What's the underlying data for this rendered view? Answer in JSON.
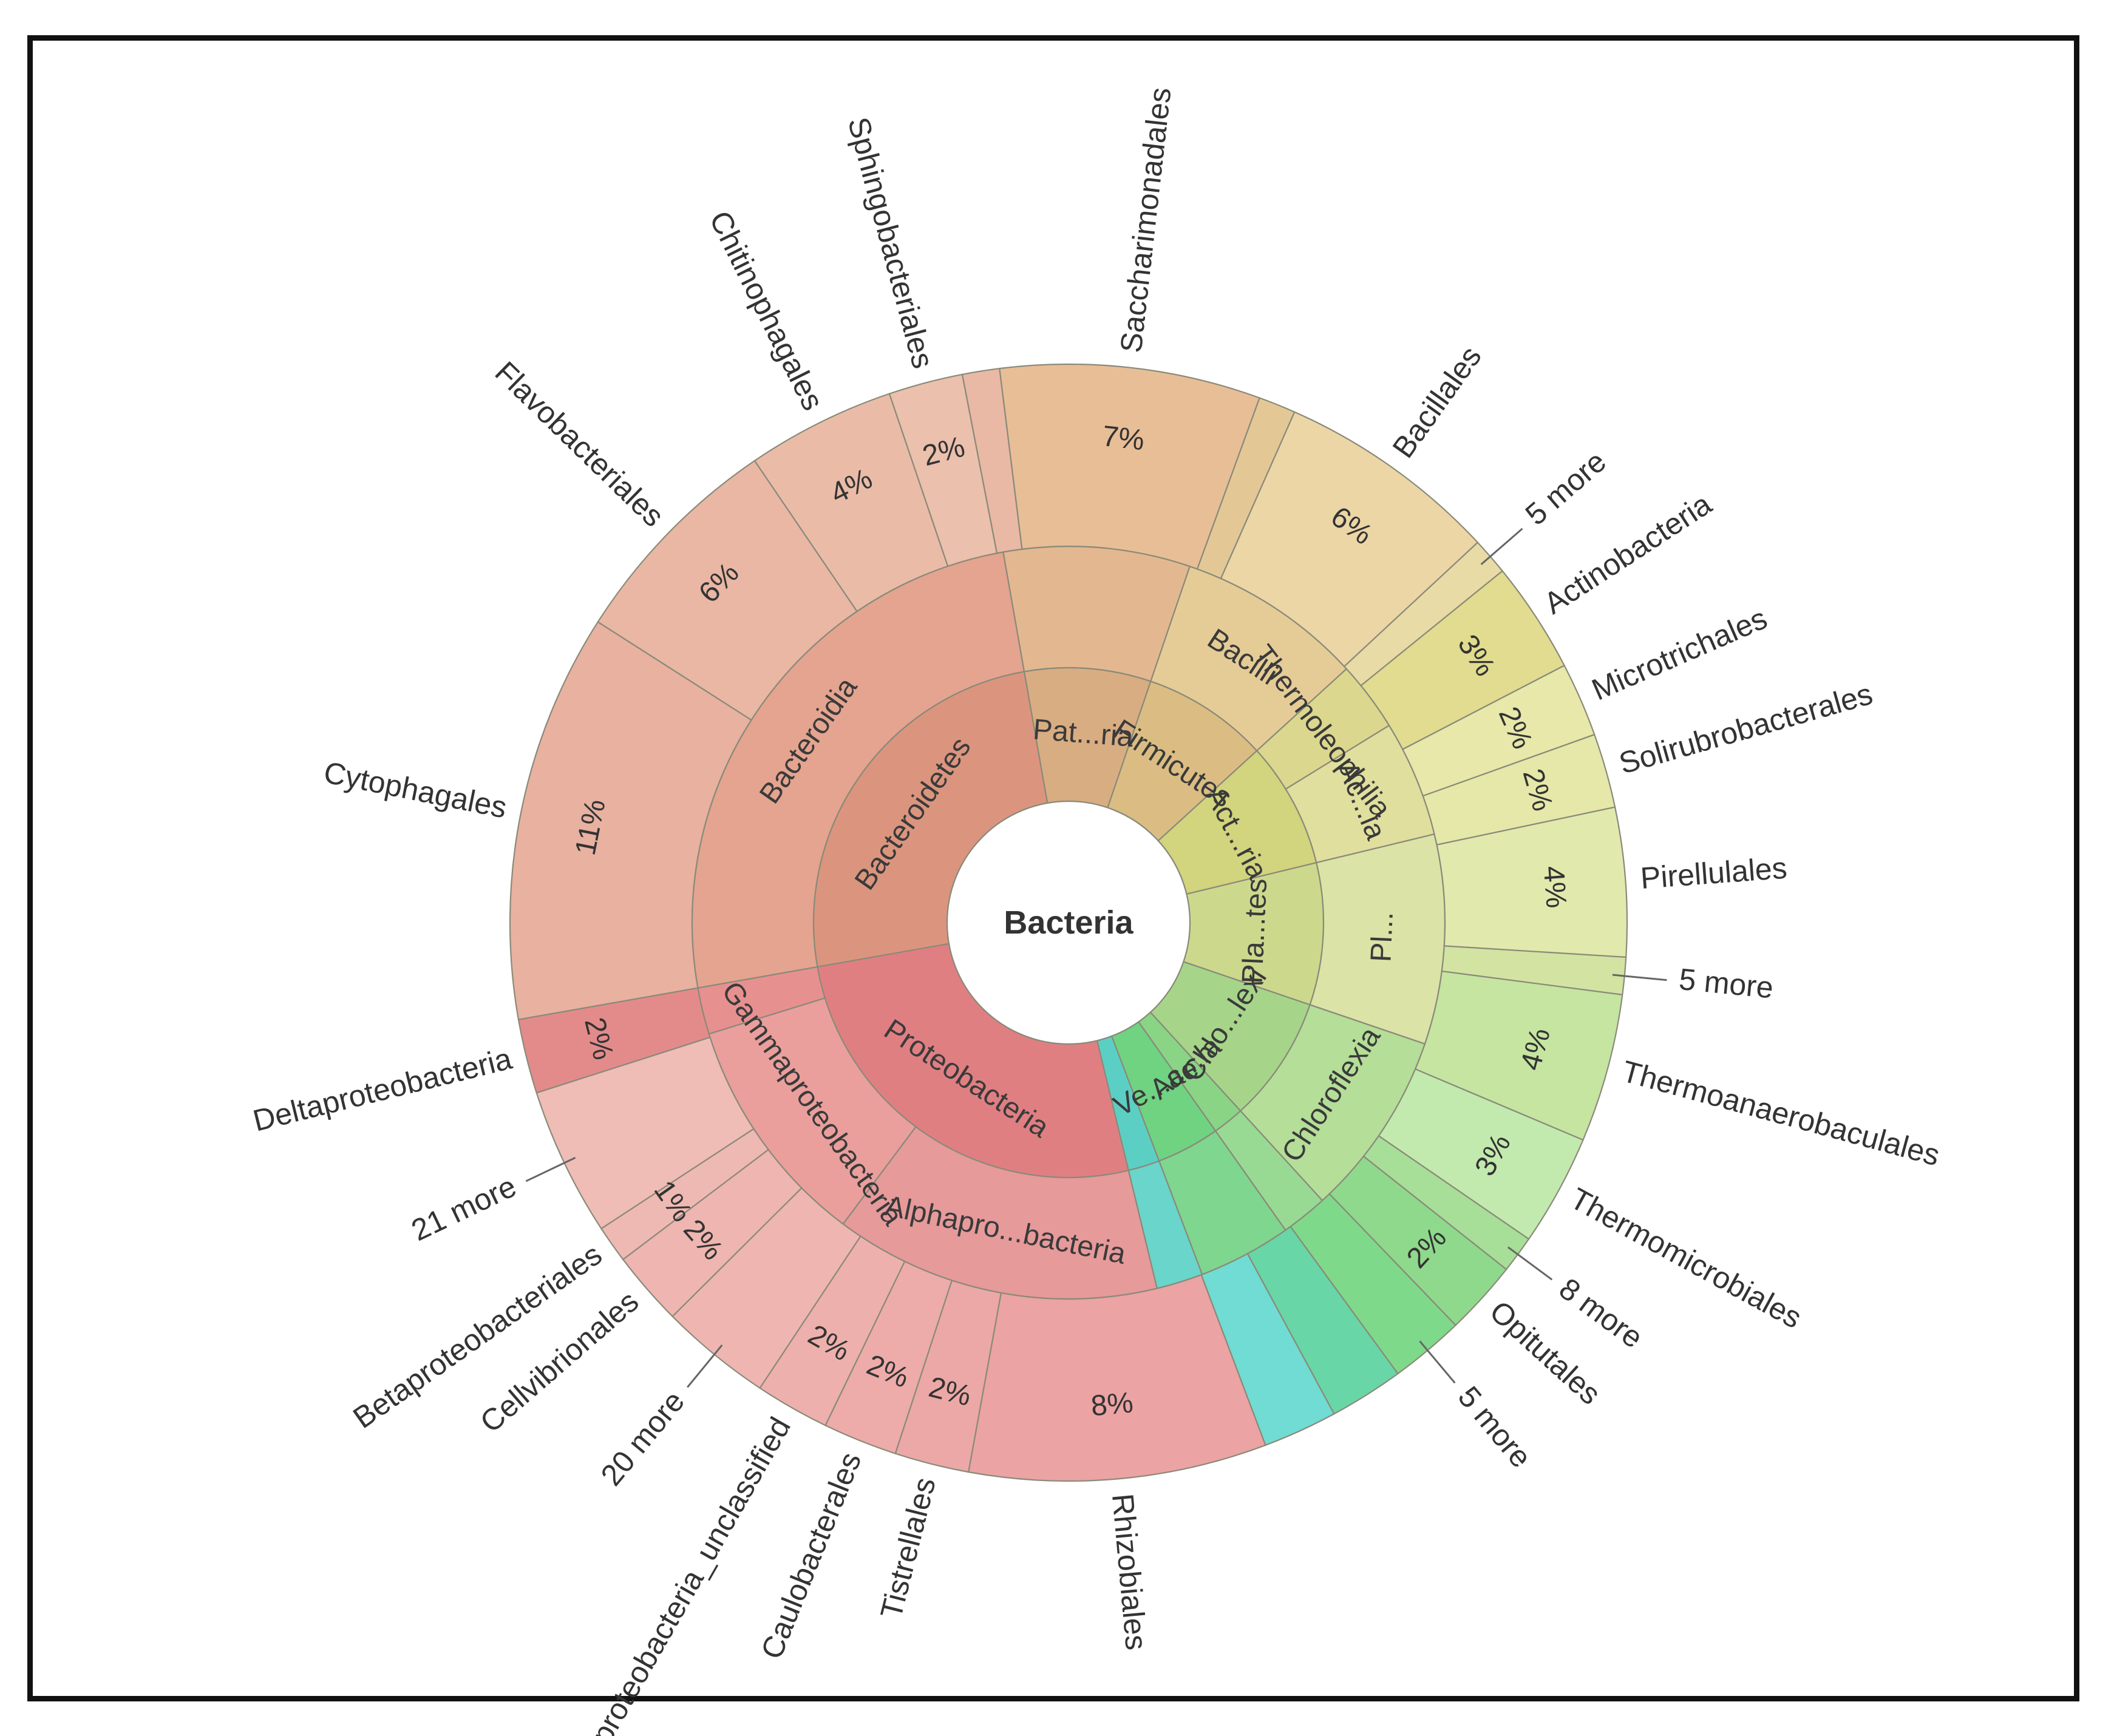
{
  "chart_data": {
    "type": "sunburst",
    "title": "",
    "center_label": "Bacteria",
    "colors": {
      "proteobacteria": "#e38f8f",
      "bacteroidetes": "#e0a38c",
      "firmicutes": "#e3c493",
      "actinobacteria": "#dcd48f",
      "planctomycetes": "#d9e3a8",
      "chloroflexi": "#b5dd92",
      "verrucomicrobia": "#78d181",
      "other": "#6fd8cf"
    },
    "rings": [
      {
        "level": "phylum",
        "segments": [
          {
            "label": "Bacteroidetes",
            "value": 25,
            "color": "#db957e"
          },
          {
            "label": "Pat...ria",
            "value": 8,
            "color": "#d9ad82"
          },
          {
            "label": "Firmicutes",
            "value": 8,
            "color": "#dbbd83"
          },
          {
            "label": "Act...ria",
            "value": 8,
            "color": "#d2d47e"
          },
          {
            "label": "Pla...tes",
            "value": 9,
            "color": "#ccd98c"
          },
          {
            "label": "Chlo...lexi",
            "value": 8,
            "color": "#a6d58a"
          },
          {
            "label": "Ac...la",
            "value": 2,
            "color": "#8ad486"
          },
          {
            "label": "Ve...ae",
            "value": 4,
            "color": "#6fd382"
          },
          {
            "label": "",
            "value": 2,
            "color": "#5ccfc4"
          },
          {
            "label": "Proteobacteria",
            "value": 26,
            "color": "#e07f82"
          }
        ]
      },
      {
        "level": "class",
        "segments": [
          {
            "label": "Bacteroidia",
            "value": 25,
            "color": "#e4a48f"
          },
          {
            "label": "",
            "value": 8,
            "color": "#e3b890"
          },
          {
            "label": "Bacilli",
            "value": 8,
            "color": "#e5cc96"
          },
          {
            "label": "Thermoleophilia",
            "value": 3,
            "color": "#dcd78e"
          },
          {
            "label": "Ac...ia",
            "value": 5,
            "color": "#e0df9e"
          },
          {
            "label": "Pl...",
            "value": 9,
            "color": "#dbe3a6"
          },
          {
            "label": "Chloroflexia",
            "value": 8,
            "color": "#b5de98"
          },
          {
            "label": "",
            "value": 2,
            "color": "#98da93"
          },
          {
            "label": "",
            "value": 4,
            "color": "#7fd68e"
          },
          {
            "label": "",
            "value": 2,
            "color": "#69d5cb"
          },
          {
            "label": "Alphapro...bacteria",
            "value": 14,
            "color": "#e69a9a"
          },
          {
            "label": "Gammaproteobacteria",
            "value": 10,
            "color": "#ea9f9c"
          },
          {
            "label": "",
            "value": 2,
            "color": "#e79090"
          }
        ]
      },
      {
        "level": "order",
        "segments": [
          {
            "label": "Cytophagales",
            "pct": "11%",
            "value": 11,
            "color": "#e8b1a0"
          },
          {
            "label": "Flavobacteriales",
            "pct": "6%",
            "value": 6,
            "color": "#e9b7a4"
          },
          {
            "label": "Chitinophagales",
            "pct": "4%",
            "value": 4,
            "color": "#eabca8"
          },
          {
            "label": "Sphingobacteriales",
            "pct": "2%",
            "value": 2,
            "color": "#ebc0ac"
          },
          {
            "label": "",
            "pct": "",
            "value": 1,
            "color": "#e9b9a5"
          },
          {
            "label": "Saccharimonadales",
            "pct": "7%",
            "value": 7,
            "color": "#e8be96"
          },
          {
            "label": "",
            "pct": "",
            "value": 1,
            "color": "#e3c896"
          },
          {
            "label": "Bacillales",
            "pct": "6%",
            "value": 6,
            "color": "#ecd6a6"
          },
          {
            "label": "5 more",
            "pct": "",
            "value": 1,
            "color": "#e9dba6"
          },
          {
            "label": "Actinobacteria",
            "pct": "3%",
            "value": 3,
            "color": "#e1dc8f"
          },
          {
            "label": "Microtrichales",
            "pct": "2%",
            "value": 2,
            "color": "#e7e8a9"
          },
          {
            "label": "Solirubrobacterales",
            "pct": "2%",
            "value": 2,
            "color": "#e5e8a9"
          },
          {
            "label": "Pirellulales",
            "pct": "4%",
            "value": 4,
            "color": "#e2e9ad"
          },
          {
            "label": "5 more",
            "pct": "",
            "value": 1,
            "color": "#d3e3a2"
          },
          {
            "label": "Thermoanaerobaculales",
            "pct": "4%",
            "value": 4,
            "color": "#c5e5a1"
          },
          {
            "label": "Thermomicrobiales",
            "pct": "3%",
            "value": 3,
            "color": "#c3eaae"
          },
          {
            "label": "8 more",
            "pct": "",
            "value": 1,
            "color": "#a7de98"
          },
          {
            "label": "Opitutales",
            "pct": "2%",
            "value": 2,
            "color": "#8fd98c"
          },
          {
            "label": "5 more",
            "pct": "",
            "value": 2,
            "color": "#7fd98a"
          },
          {
            "label": "",
            "pct": "",
            "value": 2,
            "color": "#68d6a6"
          },
          {
            "label": "",
            "pct": "",
            "value": 2,
            "color": "#70dcd3"
          },
          {
            "label": "Rhizobiales",
            "pct": "8%",
            "value": 8,
            "color": "#eba3a3"
          },
          {
            "label": "Tistrellales",
            "pct": "2%",
            "value": 2,
            "color": "#eca8a6"
          },
          {
            "label": "Caulobacterales",
            "pct": "2%",
            "value": 2,
            "color": "#edaca9"
          },
          {
            "label": "Alphaproteobacteria_unclassified",
            "pct": "2%",
            "value": 2,
            "color": "#eeb0ac"
          },
          {
            "label": "20 more",
            "pct": "",
            "value": 3,
            "color": "#efb6b1"
          },
          {
            "label": "Cellvibrionales",
            "pct": "2%",
            "value": 2,
            "color": "#efb5b0"
          },
          {
            "label": "Betaproteobacteriales",
            "pct": "1%",
            "value": 1,
            "color": "#efb9b3"
          },
          {
            "label": "21 more",
            "pct": "",
            "value": 4,
            "color": "#f0bcb6"
          },
          {
            "label": "Deltaproteobacteria",
            "pct": "2%",
            "value": 2,
            "color": "#e38b8b"
          }
        ]
      }
    ]
  }
}
